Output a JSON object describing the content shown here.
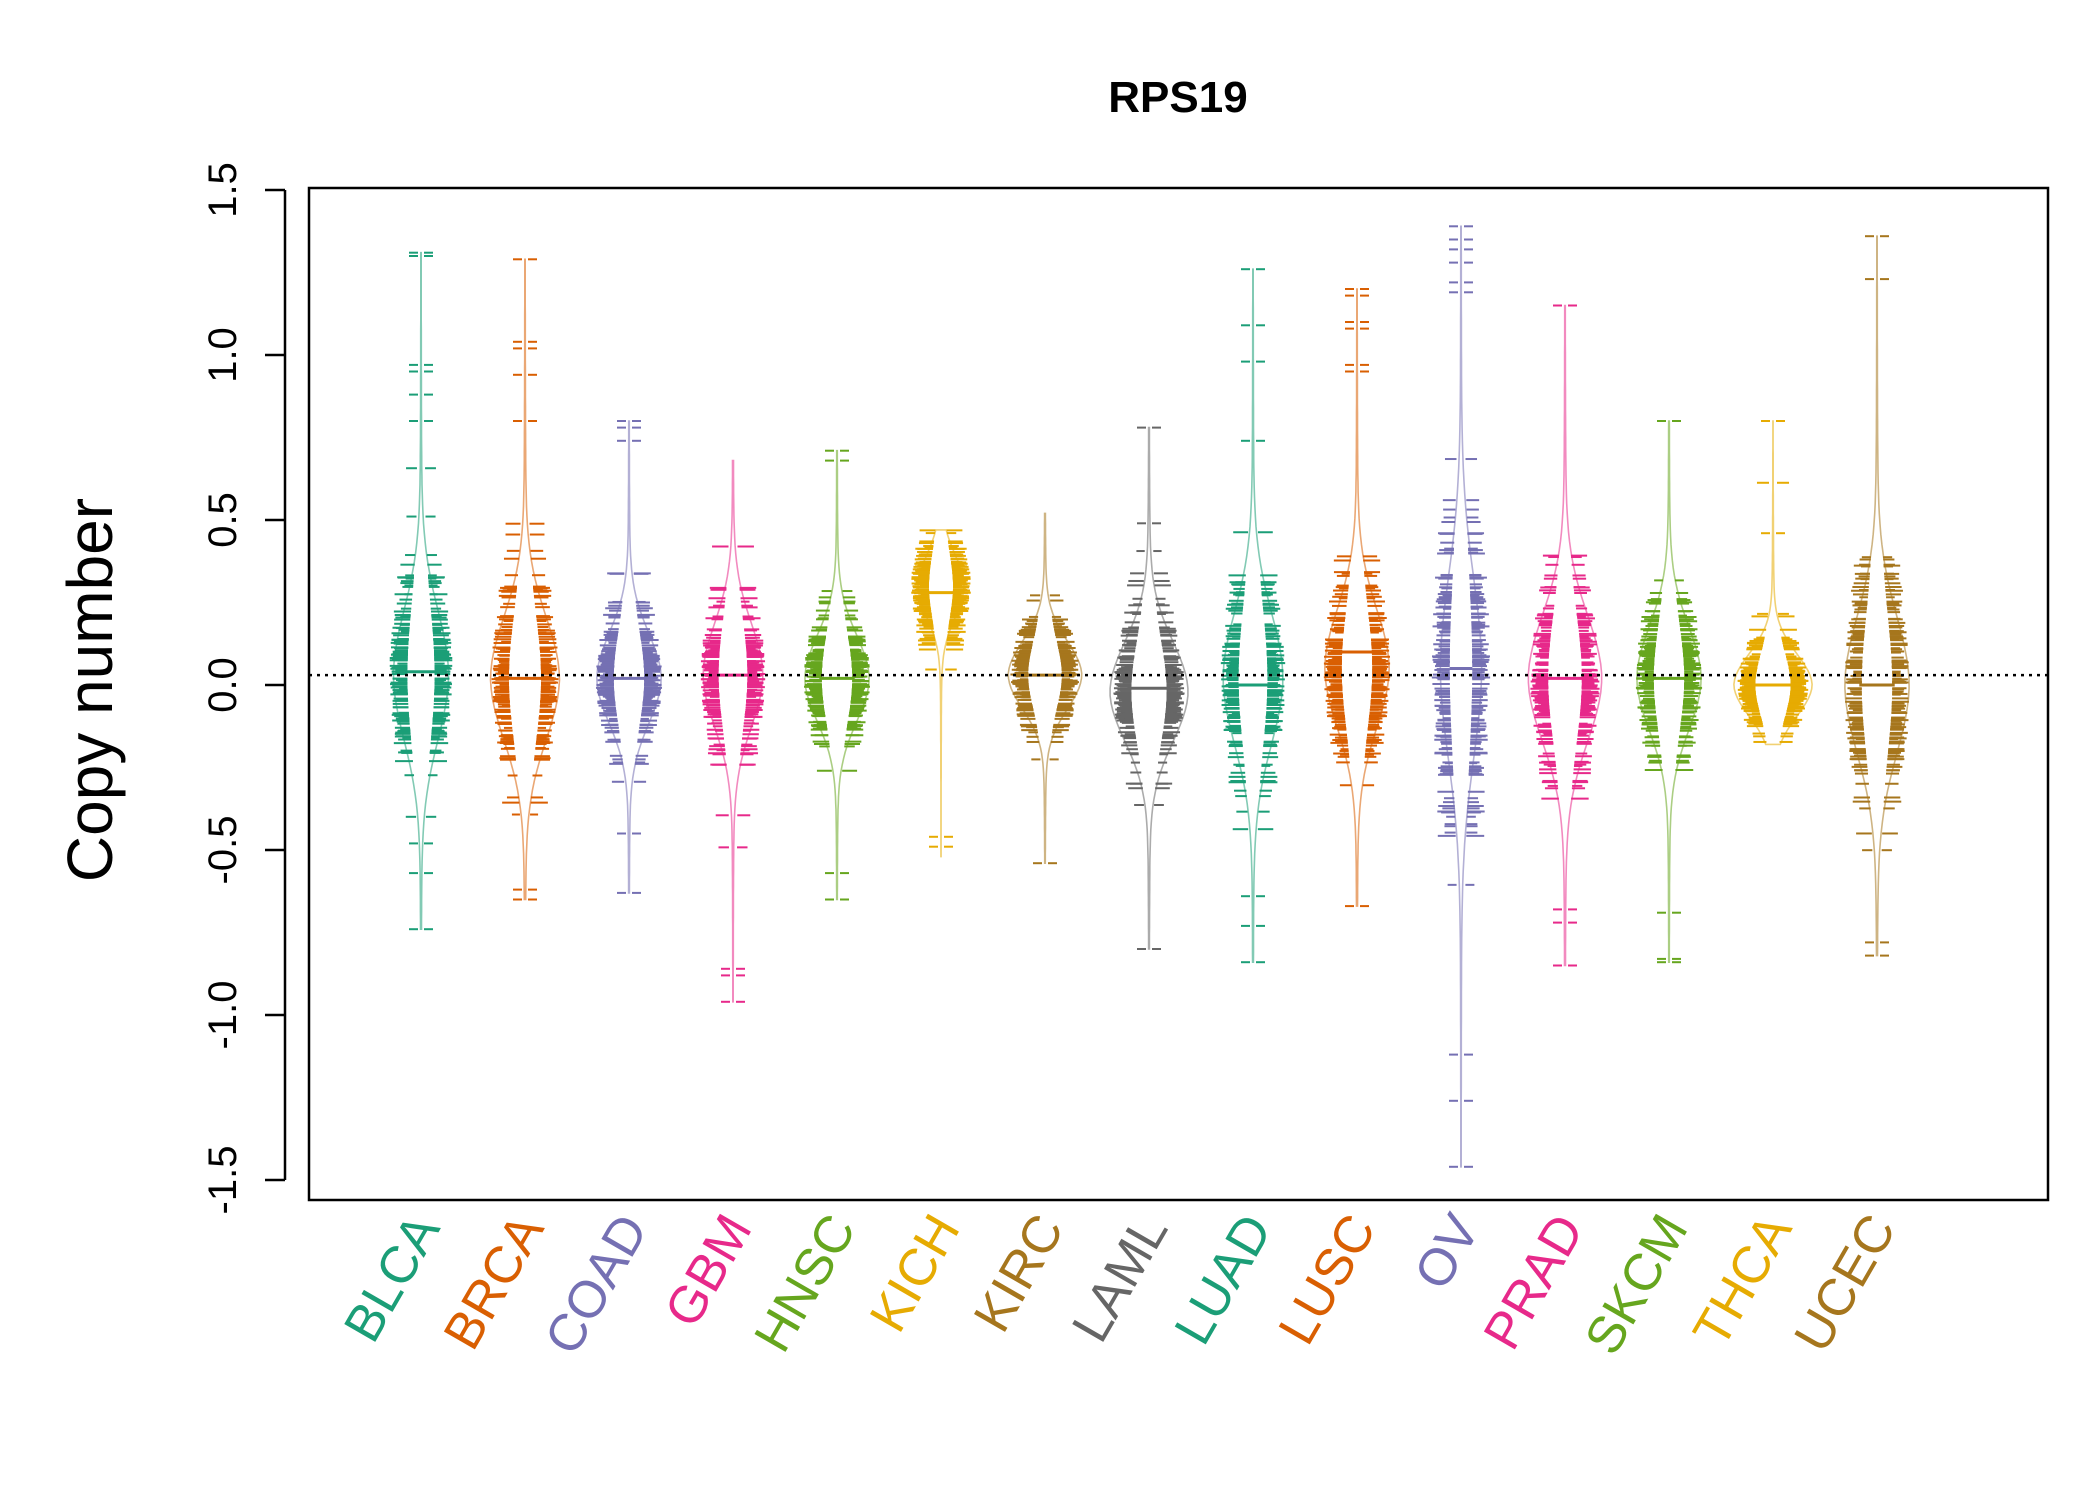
{
  "chart_data": {
    "type": "beanplot",
    "title": "RPS19",
    "xlabel": "",
    "ylabel": "Copy number",
    "ylim": [
      -1.5,
      1.5
    ],
    "yticks": [
      "-1.5",
      "-1.0",
      "-0.5",
      "0.0",
      "0.5",
      "1.0",
      "1.5"
    ],
    "reference_line": 0.03,
    "grid": false,
    "categories": [
      "BLCA",
      "BRCA",
      "COAD",
      "GBM",
      "HNSC",
      "KICH",
      "KIRC",
      "LAML",
      "LUAD",
      "LUSC",
      "OV",
      "PRAD",
      "SKCM",
      "THCA",
      "UCEC"
    ],
    "colors": [
      "#1b9e77",
      "#d95f02",
      "#7570b3",
      "#e7298a",
      "#66a61e",
      "#e6ab02",
      "#a6761d",
      "#666666",
      "#1b9e77",
      "#d95f02",
      "#7570b3",
      "#e7298a",
      "#66a61e",
      "#e6ab02",
      "#a6761d"
    ],
    "series": [
      {
        "name": "BLCA",
        "min": -0.74,
        "max": 1.31,
        "median": 0.04,
        "mode": 0.03,
        "width": 0.6,
        "outliers": [
          1.31,
          1.3,
          0.97,
          0.95,
          0.88,
          0.8,
          -0.57,
          -0.48,
          -0.74
        ]
      },
      {
        "name": "BRCA",
        "min": -0.65,
        "max": 1.29,
        "median": 0.02,
        "mode": 0.02,
        "width": 0.75,
        "outliers": [
          1.29,
          1.04,
          1.02,
          0.94,
          0.8,
          -0.62,
          -0.65
        ]
      },
      {
        "name": "COAD",
        "min": -0.63,
        "max": 0.8,
        "median": 0.02,
        "mode": 0.02,
        "width": 0.7,
        "outliers": [
          0.8,
          0.78,
          0.74,
          -0.45,
          -0.63
        ]
      },
      {
        "name": "GBM",
        "min": -0.96,
        "max": 0.68,
        "median": 0.03,
        "mode": 0.03,
        "width": 0.65,
        "outliers": [
          -0.86,
          -0.88,
          -0.96
        ]
      },
      {
        "name": "HNSC",
        "min": -0.65,
        "max": 0.71,
        "median": 0.02,
        "mode": 0.02,
        "width": 0.7,
        "outliers": [
          0.71,
          0.68,
          -0.57,
          -0.65
        ]
      },
      {
        "name": "KICH",
        "min": -0.52,
        "max": 0.47,
        "median": 0.28,
        "mode": 0.3,
        "width": 0.5,
        "outliers": [
          -0.46,
          -0.49
        ]
      },
      {
        "name": "KIRC",
        "min": -0.54,
        "max": 0.52,
        "median": 0.03,
        "mode": 0.03,
        "width": 0.8,
        "outliers": [
          -0.54
        ]
      },
      {
        "name": "LAML",
        "min": -0.8,
        "max": 0.78,
        "median": -0.01,
        "mode": -0.02,
        "width": 0.85,
        "outliers": [
          0.78,
          0.49,
          -0.8
        ]
      },
      {
        "name": "LUAD",
        "min": -0.84,
        "max": 1.26,
        "median": 0.0,
        "mode": 0.02,
        "width": 0.65,
        "outliers": [
          1.26,
          1.09,
          0.98,
          0.74,
          -0.64,
          -0.73,
          -0.84
        ]
      },
      {
        "name": "LUSC",
        "min": -0.67,
        "max": 1.2,
        "median": 0.1,
        "mode": 0.05,
        "width": 0.7,
        "outliers": [
          1.2,
          1.18,
          1.1,
          1.08,
          0.97,
          0.95,
          -0.67
        ]
      },
      {
        "name": "OV",
        "min": -1.46,
        "max": 1.39,
        "median": 0.05,
        "mode": 0.05,
        "width": 0.45,
        "outliers": [
          1.39,
          1.35,
          1.32,
          1.28,
          1.22,
          1.19,
          -1.12,
          -1.26,
          -1.46
        ]
      },
      {
        "name": "PRAD",
        "min": -0.85,
        "max": 1.15,
        "median": 0.02,
        "mode": 0.02,
        "width": 0.8,
        "outliers": [
          1.15,
          -0.68,
          -0.72,
          -0.85
        ]
      },
      {
        "name": "SKCM",
        "min": -0.84,
        "max": 0.8,
        "median": 0.02,
        "mode": 0.02,
        "width": 0.7,
        "outliers": [
          0.8,
          -0.69,
          -0.83,
          -0.84
        ]
      },
      {
        "name": "THCA",
        "min": -0.18,
        "max": 0.8,
        "median": 0.0,
        "mode": 0.0,
        "width": 0.85,
        "outliers": [
          0.8,
          0.46
        ]
      },
      {
        "name": "UCEC",
        "min": -0.82,
        "max": 1.36,
        "median": 0.0,
        "mode": 0.0,
        "width": 0.7,
        "outliers": [
          1.36,
          1.23,
          -0.78,
          -0.82
        ]
      }
    ]
  }
}
